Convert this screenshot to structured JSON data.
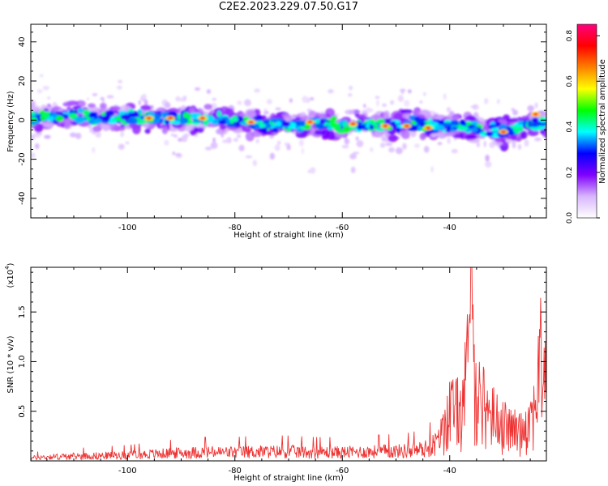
{
  "title": "C2E2.2023.229.07.50.G17",
  "chart_data": [
    {
      "type": "heatmap",
      "xlabel": "Height of straight line (km)",
      "ylabel": "Frequency (Hz)",
      "xlim": [
        -118,
        -22
      ],
      "ylim": [
        -50,
        49
      ],
      "xticks": [
        -100,
        -80,
        -60,
        -40
      ],
      "yticks": [
        -40,
        -20,
        0,
        20,
        40
      ],
      "band_center": [
        [
          -118,
          1
        ],
        [
          -110,
          2
        ],
        [
          -100,
          1
        ],
        [
          -95,
          1
        ],
        [
          -90,
          1
        ],
        [
          -85,
          0
        ],
        [
          -80,
          0
        ],
        [
          -75,
          -2
        ],
        [
          -70,
          -3
        ],
        [
          -65,
          -2
        ],
        [
          -60,
          -3
        ],
        [
          -55,
          -3
        ],
        [
          -50,
          -3
        ],
        [
          -45,
          -2
        ],
        [
          -42,
          -3
        ],
        [
          -38,
          -3
        ],
        [
          -35,
          -4
        ],
        [
          -30,
          -6
        ],
        [
          -25,
          -2
        ],
        [
          -22,
          -1
        ]
      ],
      "colorbar": {
        "label": "Normalized spectral amplitude",
        "range": [
          0,
          0.85
        ],
        "ticks": [
          0.0,
          0.2,
          0.4,
          0.6,
          0.8
        ],
        "colors": [
          "#ffffff",
          "#d8b6ff",
          "#8000ff",
          "#0000ff",
          "#00ffff",
          "#00ff00",
          "#ffff00",
          "#ff8000",
          "#ff0000",
          "#ff0080"
        ]
      }
    },
    {
      "type": "line",
      "xlabel": "Height of straight line (km)",
      "ylabel": "SNR (10 * v/v)",
      "yunit": "(x10",
      "yunit_exp": "4",
      "yunit_close": ")",
      "xlim": [
        -118,
        -22
      ],
      "ylim": [
        0,
        1.95
      ],
      "xticks": [
        -100,
        -80,
        -60,
        -40
      ],
      "yticks": [
        0.5,
        1.0,
        1.5
      ],
      "ytick_labels": [
        "0.5",
        "1.0",
        "1.5"
      ],
      "color": "#ee3333",
      "envelope": [
        [
          -118,
          0.05
        ],
        [
          -115,
          0.07
        ],
        [
          -110,
          0.08
        ],
        [
          -105,
          0.09
        ],
        [
          -100,
          0.1
        ],
        [
          -95,
          0.12
        ],
        [
          -90,
          0.14
        ],
        [
          -85,
          0.15
        ],
        [
          -80,
          0.15
        ],
        [
          -75,
          0.16
        ],
        [
          -70,
          0.16
        ],
        [
          -65,
          0.15
        ],
        [
          -60,
          0.15
        ],
        [
          -55,
          0.16
        ],
        [
          -50,
          0.17
        ],
        [
          -47,
          0.18
        ],
        [
          -44,
          0.22
        ],
        [
          -42,
          0.35
        ],
        [
          -40,
          0.85
        ],
        [
          -38,
          0.85
        ],
        [
          -36,
          1.85
        ],
        [
          -35,
          1.2
        ],
        [
          -33,
          0.85
        ],
        [
          -31,
          0.7
        ],
        [
          -29,
          0.55
        ],
        [
          -27,
          0.5
        ],
        [
          -25,
          0.7
        ],
        [
          -24,
          1.0
        ],
        [
          -23,
          1.7
        ],
        [
          -22,
          1.7
        ]
      ]
    }
  ]
}
